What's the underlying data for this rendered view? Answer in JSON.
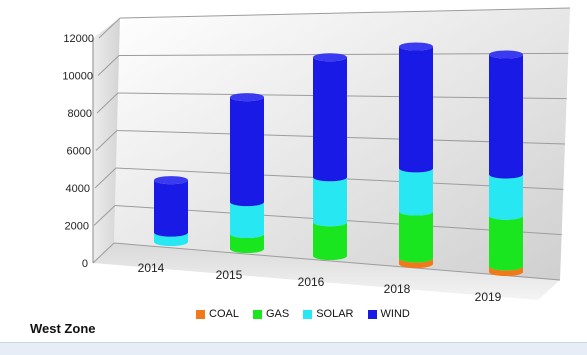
{
  "chart_data": {
    "type": "bar",
    "subtype": "3d-stacked-cylinder",
    "categories": [
      "2014",
      "2015",
      "2016",
      "2018",
      "2019"
    ],
    "series": [
      {
        "name": "COAL",
        "color": "#f07a1a",
        "values": [
          0,
          0,
          0,
          300,
          300
        ]
      },
      {
        "name": "GAS",
        "color": "#19e61f",
        "values": [
          0,
          800,
          1800,
          2500,
          2700
        ]
      },
      {
        "name": "SOLAR",
        "color": "#27e8f2",
        "values": [
          500,
          1700,
          2400,
          2300,
          2200
        ]
      },
      {
        "name": "WIND",
        "color": "#1a1ae6",
        "values": [
          2800,
          5600,
          6400,
          6500,
          6400
        ]
      }
    ],
    "yticks": [
      0,
      2000,
      4000,
      6000,
      8000,
      10000,
      12000
    ],
    "ylim": [
      0,
      12000
    ],
    "legend_position": "bottom"
  },
  "footer": {
    "label": "West Zone"
  }
}
